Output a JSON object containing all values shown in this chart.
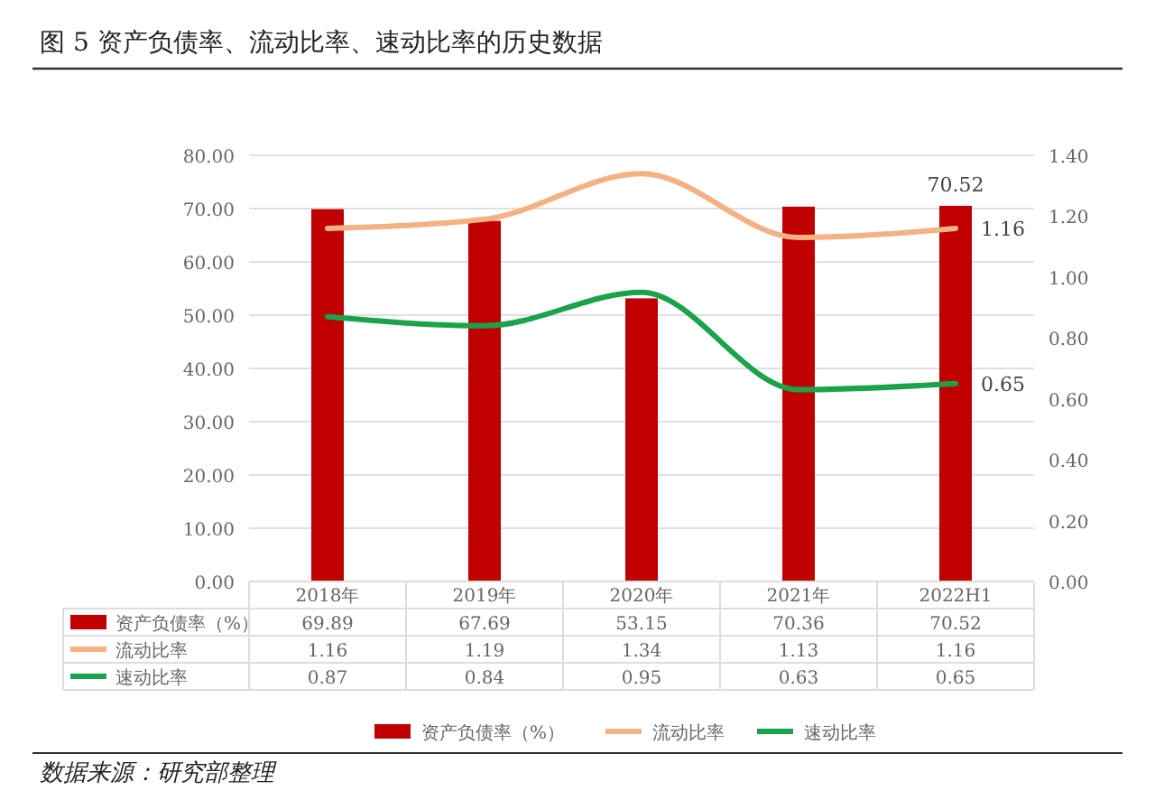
{
  "chart_data": {
    "type": "bar",
    "title": "图 5 资产负债率、流动比率、速动比率的历史数据",
    "categories": [
      "2018年",
      "2019年",
      "2020年",
      "2021年",
      "2022H1"
    ],
    "series": [
      {
        "name": "资产负债率（%）",
        "color": "#c00000",
        "values": [
          69.89,
          67.69,
          53.15,
          70.36,
          70.52
        ]
      },
      {
        "name": "流动比率",
        "type": "line",
        "axis": "y2",
        "color": "#f4b183",
        "values": [
          1.16,
          1.19,
          1.34,
          1.13,
          1.16
        ]
      },
      {
        "name": "速动比率",
        "type": "line",
        "axis": "y2",
        "color": "#1aa34a",
        "values": [
          0.87,
          0.84,
          0.95,
          0.63,
          0.65
        ]
      }
    ],
    "ylim": [
      0,
      80
    ],
    "yticks": [
      {
        "value": 0,
        "label": "0.00"
      },
      {
        "value": 10,
        "label": "10.00"
      },
      {
        "value": 20,
        "label": "20.00"
      },
      {
        "value": 30,
        "label": "30.00"
      },
      {
        "value": 40,
        "label": "40.00"
      },
      {
        "value": 50,
        "label": "50.00"
      },
      {
        "value": 60,
        "label": "60.00"
      },
      {
        "value": 70,
        "label": "70.00"
      },
      {
        "value": 80,
        "label": "80.00"
      }
    ],
    "y2lim": [
      0,
      1.4
    ],
    "y2ticks": [
      {
        "value": 0,
        "label": "0.00"
      },
      {
        "value": 0.2,
        "label": "0.20"
      },
      {
        "value": 0.4,
        "label": "0.40"
      },
      {
        "value": 0.6,
        "label": "0.60"
      },
      {
        "value": 0.8,
        "label": "0.80"
      },
      {
        "value": 1,
        "label": "1.00"
      },
      {
        "value": 1.2,
        "label": "1.20"
      },
      {
        "value": 1.4,
        "label": "1.40"
      }
    ],
    "grid": "y",
    "legend": "bottom",
    "data_labels": true,
    "annotations": [
      "数据来源：研究部整理",
      "70.52",
      "1.16",
      "0.65"
    ]
  }
}
